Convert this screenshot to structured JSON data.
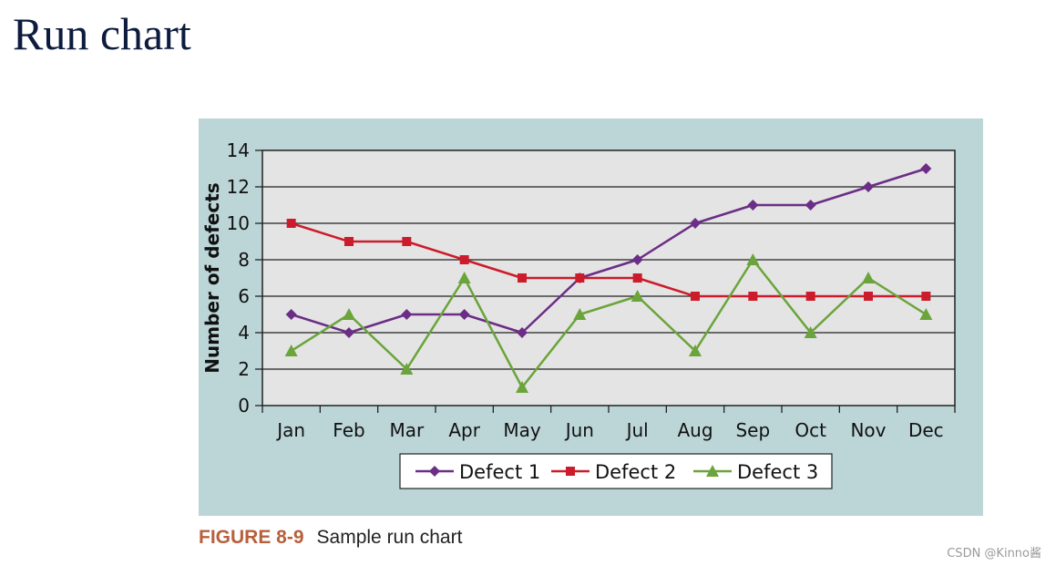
{
  "slide": {
    "title": "Run chart"
  },
  "figure": {
    "label": "FIGURE 8-9",
    "caption": "Sample run chart"
  },
  "watermark": "CSDN @Kinno酱",
  "colors": {
    "panel_bg": "#bcd6d8",
    "plot_bg": "#e4e4e4",
    "defect1": "#6b2d86",
    "defect2": "#cc1b2a",
    "defect3": "#6aa43a"
  },
  "chart_data": {
    "type": "line",
    "title": "",
    "xlabel": "",
    "ylabel": "Number of defects",
    "categories": [
      "Jan",
      "Feb",
      "Mar",
      "Apr",
      "May",
      "Jun",
      "Jul",
      "Aug",
      "Sep",
      "Oct",
      "Nov",
      "Dec"
    ],
    "ylim": [
      0,
      14
    ],
    "yticks": [
      0,
      2,
      4,
      6,
      8,
      10,
      12,
      14
    ],
    "grid": true,
    "legend_position": "bottom",
    "series": [
      {
        "name": "Defect 1",
        "marker": "diamond",
        "color": "#6b2d86",
        "values": [
          5,
          4,
          5,
          5,
          4,
          7,
          8,
          10,
          11,
          11,
          12,
          13
        ]
      },
      {
        "name": "Defect 2",
        "marker": "square",
        "color": "#cc1b2a",
        "values": [
          10,
          9,
          9,
          8,
          7,
          7,
          7,
          6,
          6,
          6,
          6,
          6
        ]
      },
      {
        "name": "Defect 3",
        "marker": "triangle",
        "color": "#6aa43a",
        "values": [
          3,
          5,
          2,
          7,
          1,
          5,
          6,
          3,
          8,
          4,
          7,
          5
        ]
      }
    ]
  }
}
